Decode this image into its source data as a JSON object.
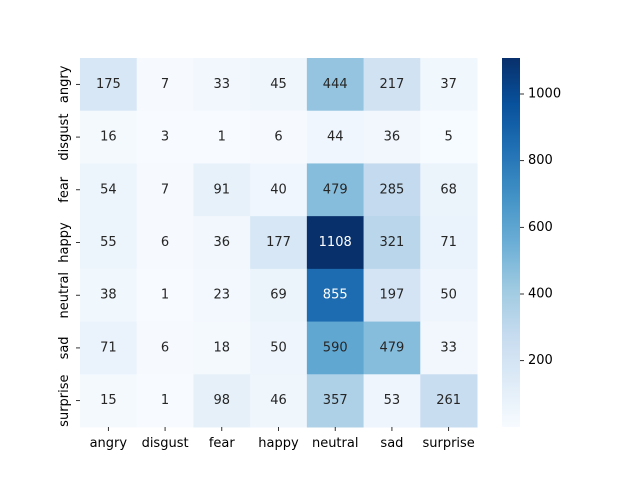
{
  "chart_data": {
    "type": "heatmap",
    "title": "",
    "xlabel": "",
    "ylabel": "",
    "x_categories": [
      "angry",
      "disgust",
      "fear",
      "happy",
      "neutral",
      "sad",
      "surprise"
    ],
    "y_categories": [
      "angry",
      "disgust",
      "fear",
      "happy",
      "neutral",
      "sad",
      "surprise"
    ],
    "values": [
      [
        175,
        7,
        33,
        45,
        444,
        217,
        37
      ],
      [
        16,
        3,
        1,
        6,
        44,
        36,
        5
      ],
      [
        54,
        7,
        91,
        40,
        479,
        285,
        68
      ],
      [
        55,
        6,
        36,
        177,
        1108,
        321,
        71
      ],
      [
        38,
        1,
        23,
        69,
        855,
        197,
        50
      ],
      [
        71,
        6,
        18,
        50,
        590,
        479,
        33
      ],
      [
        15,
        1,
        98,
        46,
        357,
        53,
        261
      ]
    ],
    "annotations": true,
    "colormap": "Blues",
    "colorbar": {
      "range": [
        1,
        1108
      ],
      "ticks": [
        200,
        400,
        600,
        800,
        1000
      ],
      "tick_labels": [
        "200",
        "400",
        "600",
        "800",
        "1000"
      ]
    }
  }
}
